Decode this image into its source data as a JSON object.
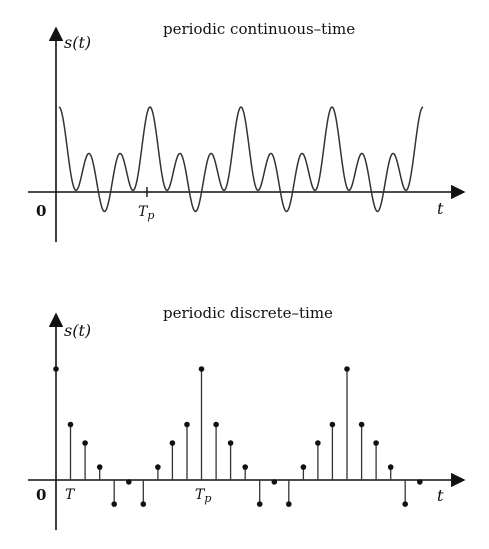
{
  "panels": {
    "continuous": {
      "title": "periodic continuous–time",
      "ylabel": "s(t)",
      "xlabel": "t",
      "origin_label": "0",
      "period_label": "Tp",
      "period_label_base": "T",
      "period_label_sub": "p",
      "periods_shown": 4,
      "line_color": "#333333"
    },
    "discrete": {
      "title": "periodic discrete–time",
      "ylabel": "s(t)",
      "xlabel": "t",
      "origin_label": "0",
      "sample_label": "T",
      "period_label": "Tp",
      "period_label_base": "T",
      "period_label_sub": "p",
      "samples_per_period": 10,
      "period_samples": [
        6,
        3,
        2,
        0.7,
        -1.3,
        -0.1,
        -1.3,
        0.7,
        2,
        3
      ],
      "total_samples": 26,
      "stem_color": "#333333"
    }
  }
}
